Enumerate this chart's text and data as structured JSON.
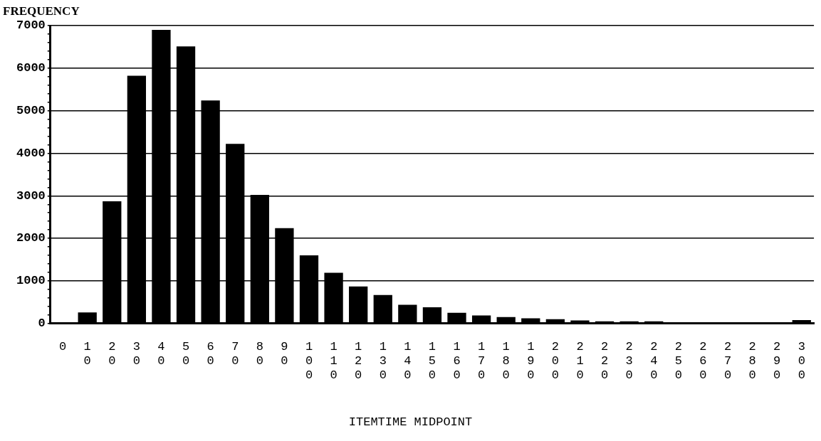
{
  "chart_data": {
    "type": "bar",
    "ylabel": "FREQUENCY",
    "xlabel": "ITEMTIME MIDPOINT",
    "categories": [
      "0",
      "10",
      "20",
      "30",
      "40",
      "50",
      "60",
      "70",
      "80",
      "90",
      "100",
      "110",
      "120",
      "130",
      "140",
      "150",
      "160",
      "170",
      "180",
      "190",
      "200",
      "210",
      "220",
      "230",
      "240",
      "250",
      "260",
      "270",
      "280",
      "290",
      "300"
    ],
    "values": [
      0,
      260,
      2870,
      5820,
      6900,
      6510,
      5240,
      4220,
      3020,
      2240,
      1600,
      1190,
      870,
      670,
      440,
      380,
      250,
      190,
      150,
      120,
      100,
      70,
      50,
      50,
      50,
      20,
      20,
      20,
      20,
      20,
      80
    ],
    "color": "#000000",
    "ylim": [
      0,
      7000
    ],
    "yticks": [
      0,
      {
        "value": 200,
        "label": null
      },
      {
        "value": 400,
        "label": null
      },
      {
        "value": 600,
        "label": null
      },
      {
        "value": 800,
        "label": null
      },
      1000,
      {
        "value": 1200,
        "label": null
      },
      {
        "value": 1400,
        "label": null
      },
      {
        "value": 1600,
        "label": null
      },
      {
        "value": 1800,
        "label": null
      },
      2000,
      {
        "value": 2200,
        "label": null
      },
      {
        "value": 2400,
        "label": null
      },
      {
        "value": 2600,
        "label": null
      },
      {
        "value": 2800,
        "label": null
      },
      3000,
      {
        "value": 3200,
        "label": null
      },
      {
        "value": 3400,
        "label": null
      },
      {
        "value": 3600,
        "label": null
      },
      {
        "value": 3800,
        "label": null
      },
      4000,
      {
        "value": 4200,
        "label": null
      },
      {
        "value": 4400,
        "label": null
      },
      {
        "value": 4600,
        "label": null
      },
      {
        "value": 4800,
        "label": null
      },
      5000,
      {
        "value": 5200,
        "label": null
      },
      {
        "value": 5400,
        "label": null
      },
      {
        "value": 5600,
        "label": null
      },
      {
        "value": 5800,
        "label": null
      },
      6000,
      {
        "value": 6200,
        "label": null
      },
      {
        "value": 6400,
        "label": null
      },
      {
        "value": 6600,
        "label": null
      },
      {
        "value": 6800,
        "label": null
      },
      7000
    ],
    "grid": "y"
  }
}
